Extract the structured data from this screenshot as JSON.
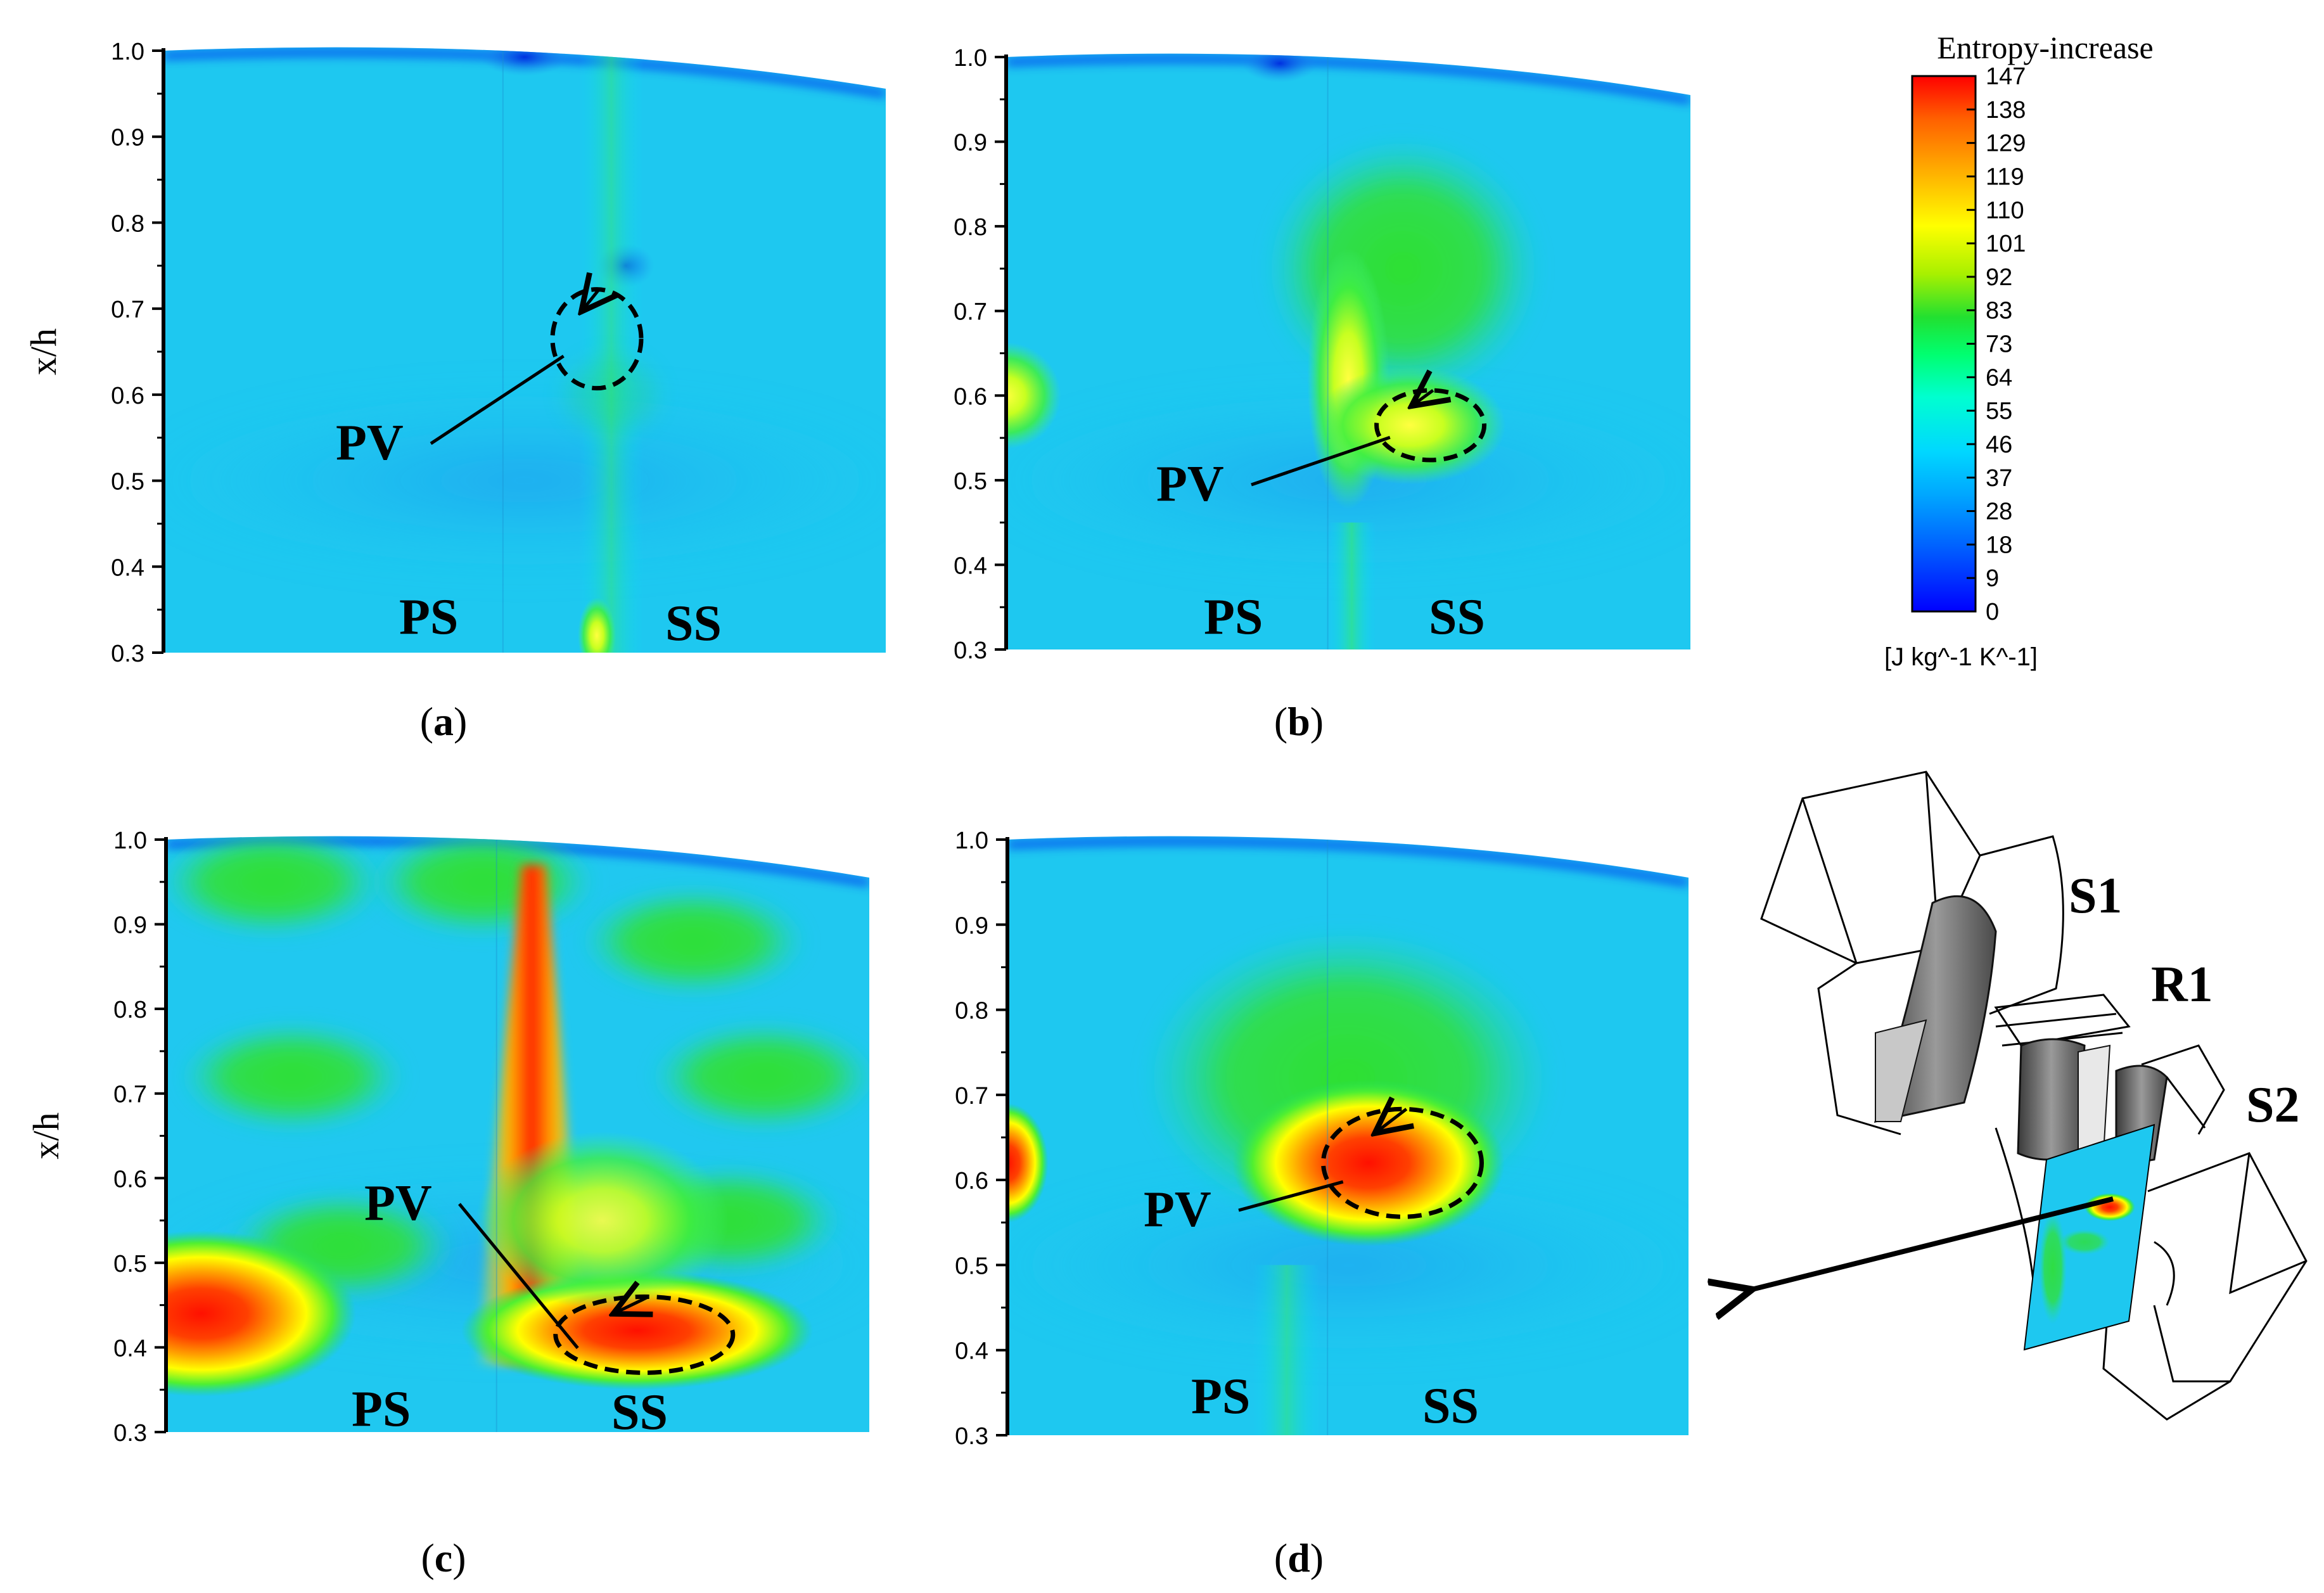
{
  "chart_data": {
    "type": "heatmap",
    "quantity": "Entropy-increase",
    "unit": "[J kg^-1 K^-1]",
    "colorbar": {
      "ticks": [
        "147",
        "138",
        "129",
        "119",
        "110",
        "101",
        "92",
        "83",
        "73",
        "64",
        "55",
        "46",
        "37",
        "28",
        "18",
        "9",
        "0"
      ],
      "range": [
        0,
        147
      ]
    },
    "panels": [
      {
        "id": "a",
        "caption": "a",
        "ylabel": "x/h",
        "ylim": [
          0.3,
          1.0
        ],
        "yticks": [
          "0.3",
          "0.4",
          "0.5",
          "0.6",
          "0.7",
          "0.8",
          "0.9",
          "1.0"
        ],
        "labels": {
          "pv": "PV",
          "ps": "PS",
          "ss": "SS"
        },
        "vortex": {
          "x": 0.6,
          "y": 0.665,
          "entropy": 52
        }
      },
      {
        "id": "b",
        "caption": "b",
        "ylabel": "",
        "ylim": [
          0.3,
          1.0
        ],
        "yticks": [
          "0.3",
          "0.4",
          "0.5",
          "0.6",
          "0.7",
          "0.8",
          "0.9",
          "1.0"
        ],
        "labels": {
          "pv": "PV",
          "ps": "PS",
          "ss": "SS"
        },
        "vortex": {
          "x": 0.62,
          "y": 0.565,
          "entropy": 115
        }
      },
      {
        "id": "c",
        "caption": "c",
        "ylabel": "x/h",
        "ylim": [
          0.3,
          1.0
        ],
        "yticks": [
          "0.3",
          "0.4",
          "0.5",
          "0.6",
          "0.7",
          "0.8",
          "0.9",
          "1.0"
        ],
        "labels": {
          "pv": "PV",
          "ps": "PS",
          "ss": "SS"
        },
        "vortex": {
          "x": 0.68,
          "y": 0.415,
          "entropy": 145
        }
      },
      {
        "id": "d",
        "caption": "d",
        "ylabel": "",
        "ylim": [
          0.3,
          1.0
        ],
        "yticks": [
          "0.3",
          "0.4",
          "0.5",
          "0.6",
          "0.7",
          "0.8",
          "0.9",
          "1.0"
        ],
        "labels": {
          "pv": "PV",
          "ps": "PS",
          "ss": "SS"
        },
        "vortex": {
          "x": 0.58,
          "y": 0.62,
          "entropy": 140
        }
      }
    ]
  },
  "schematic": {
    "labels": {
      "s1": "S1",
      "r1": "R1",
      "s2": "S2"
    }
  },
  "colors": {
    "cold": "#0000ff",
    "cyan": "#00e5ff",
    "green": "#22dd22",
    "yellow": "#ffff00",
    "red": "#ff0000"
  }
}
